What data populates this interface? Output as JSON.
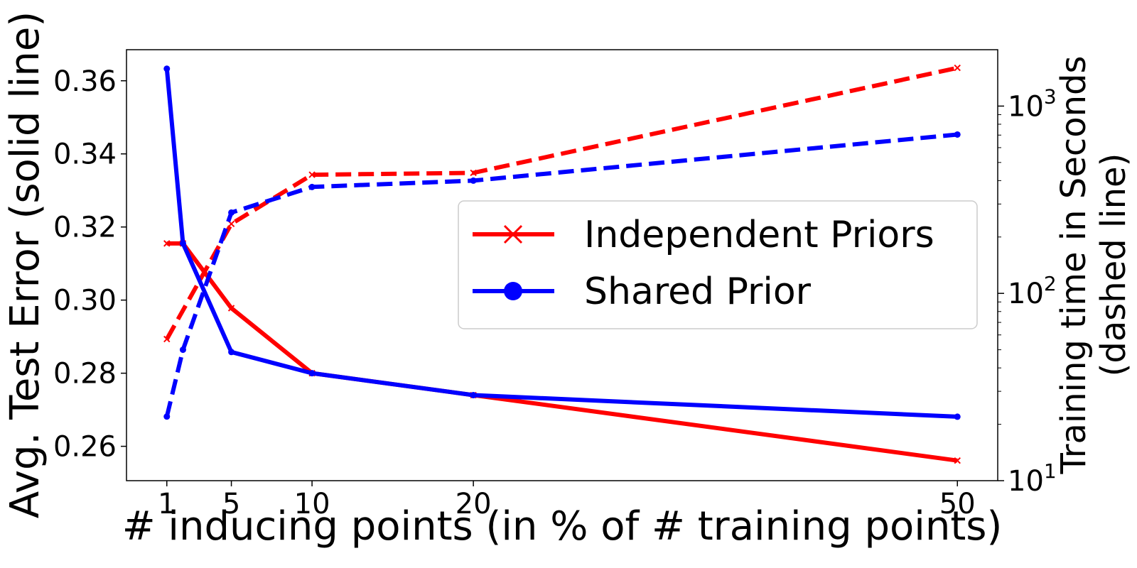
{
  "chart_data": {
    "type": "line",
    "xlabel": "# inducing points (in % of # training points)",
    "ylabel_left": "Avg. Test Error (solid line)",
    "ylabel_right_line1": "Training time in Seconds",
    "ylabel_right_line2": "(dashed line)",
    "x_ticks": [
      1,
      5,
      10,
      20,
      50
    ],
    "x_tick_labels": [
      "1",
      "5",
      "10",
      "20",
      "50"
    ],
    "xlim": [
      -1.5,
      52.5
    ],
    "left_axis": {
      "ylim": [
        0.2506,
        0.3685
      ],
      "ticks": [
        0.26,
        0.28,
        0.3,
        0.32,
        0.34,
        0.36
      ],
      "tick_labels": [
        "0.26",
        "0.28",
        "0.30",
        "0.32",
        "0.34",
        "0.36"
      ]
    },
    "right_axis": {
      "scale": "log",
      "ylim": [
        10,
        2000
      ],
      "ticks": [
        10,
        100,
        1000
      ],
      "tick_labels": [
        {
          "base": "10",
          "exp": "1"
        },
        {
          "base": "10",
          "exp": "2"
        },
        {
          "base": "10",
          "exp": "3"
        }
      ]
    },
    "series": [
      {
        "name": "Independent Priors",
        "color": "#ff0000",
        "marker": "x",
        "error_x": [
          1,
          2,
          5,
          10,
          20,
          50
        ],
        "error_values": [
          0.3155,
          0.3155,
          0.2978,
          0.28,
          0.274,
          0.2561
        ],
        "time_x": [
          1,
          5,
          10,
          20,
          50
        ],
        "time_values": [
          57,
          235,
          430,
          440,
          1600
        ]
      },
      {
        "name": "Shared Prior",
        "color": "#0000ff",
        "marker": "o",
        "error_x": [
          1,
          2,
          5,
          10,
          20,
          50
        ],
        "error_values": [
          0.3633,
          0.3155,
          0.2858,
          0.28,
          0.274,
          0.2681
        ],
        "time_x": [
          1,
          2,
          5,
          10,
          20,
          50
        ],
        "time_values": [
          22,
          50,
          270,
          370,
          400,
          705
        ]
      }
    ],
    "legend_position": "center-right"
  }
}
